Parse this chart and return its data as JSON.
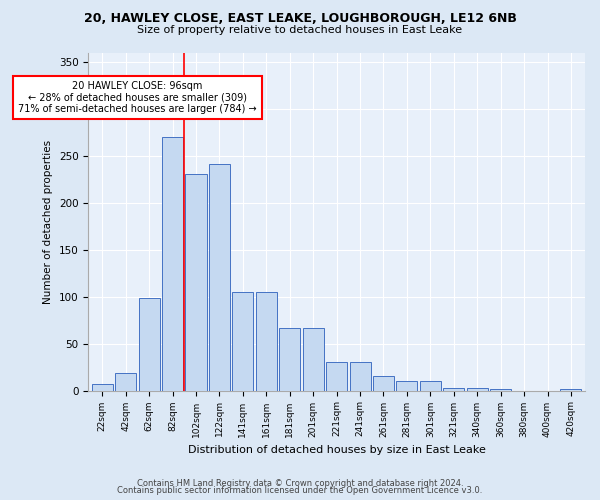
{
  "title1": "20, HAWLEY CLOSE, EAST LEAKE, LOUGHBOROUGH, LE12 6NB",
  "title2": "Size of property relative to detached houses in East Leake",
  "xlabel": "Distribution of detached houses by size in East Leake",
  "ylabel": "Number of detached properties",
  "categories": [
    "22sqm",
    "42sqm",
    "62sqm",
    "82sqm",
    "102sqm",
    "122sqm",
    "141sqm",
    "161sqm",
    "181sqm",
    "201sqm",
    "221sqm",
    "241sqm",
    "261sqm",
    "281sqm",
    "301sqm",
    "321sqm",
    "340sqm",
    "360sqm",
    "380sqm",
    "400sqm",
    "420sqm"
  ],
  "bar_heights": [
    7,
    19,
    99,
    270,
    231,
    241,
    105,
    105,
    67,
    67,
    30,
    30,
    15,
    10,
    10,
    3,
    3,
    2,
    0,
    0,
    2
  ],
  "bar_color": "#c5d9f1",
  "bar_edge_color": "#4472c4",
  "vline_color": "red",
  "vline_pos": 3.5,
  "annotation_text": "20 HAWLEY CLOSE: 96sqm\n← 28% of detached houses are smaller (309)\n71% of semi-detached houses are larger (784) →",
  "annotation_box_color": "white",
  "annotation_box_edge": "red",
  "ylim": [
    0,
    360
  ],
  "yticks": [
    0,
    50,
    100,
    150,
    200,
    250,
    300,
    350
  ],
  "footer1": "Contains HM Land Registry data © Crown copyright and database right 2024.",
  "footer2": "Contains public sector information licensed under the Open Government Licence v3.0.",
  "bg_color": "#dce8f5",
  "plot_bg_color": "#e8f0fa"
}
